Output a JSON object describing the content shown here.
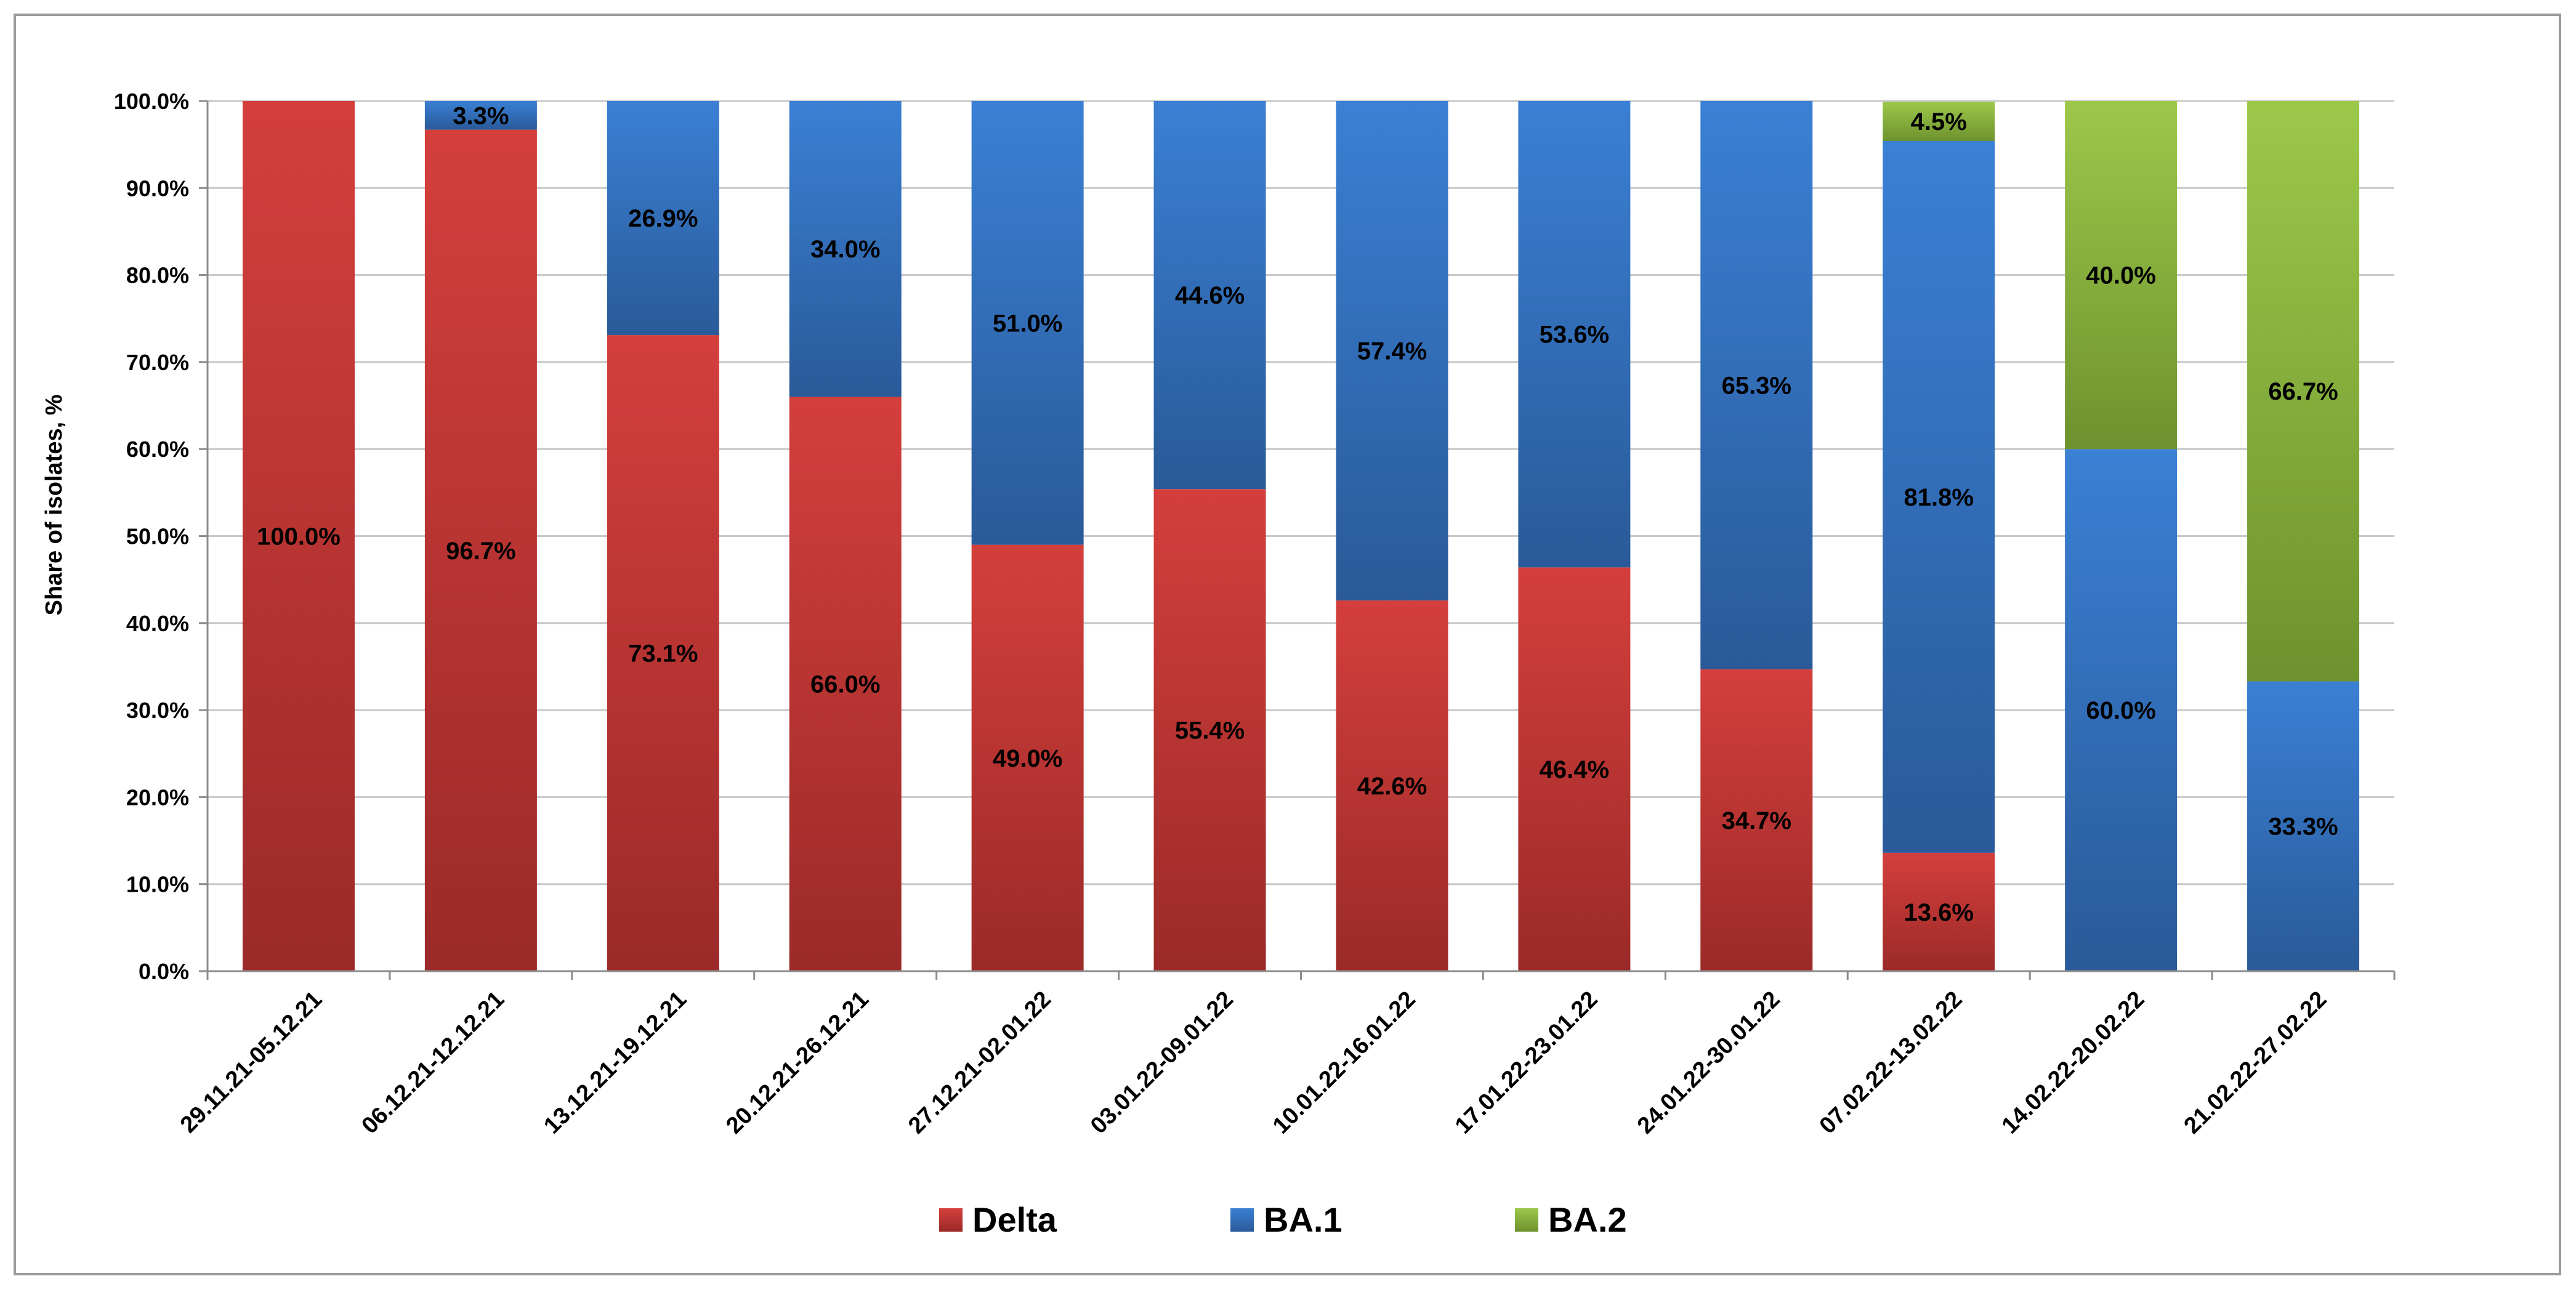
{
  "chart_data": {
    "type": "bar",
    "stacked": true,
    "title": "",
    "xlabel": "",
    "ylabel": "Share of isolates, %",
    "ylim": [
      0,
      100
    ],
    "y_ticks": [
      "0.0%",
      "10.0%",
      "20.0%",
      "30.0%",
      "40.0%",
      "50.0%",
      "60.0%",
      "70.0%",
      "80.0%",
      "90.0%",
      "100.0%"
    ],
    "grid": true,
    "legend_position": "bottom",
    "categories": [
      "29.11.21-05.12.21",
      "06.12.21-12.12.21",
      "13.12.21-19.12.21",
      "20.12.21-26.12.21",
      "27.12.21-02.01.22",
      "03.01.22-09.01.22",
      "10.01.22-16.01.22",
      "17.01.22-23.01.22",
      "24.01.22-30.01.22",
      "07.02.22-13.02.22",
      "14.02.22-20.02.22",
      "21.02.22-27.02.22"
    ],
    "series": [
      {
        "name": "Delta",
        "color": "#c9393a",
        "values": [
          100.0,
          96.7,
          73.1,
          66.0,
          49.0,
          55.4,
          42.6,
          46.4,
          34.7,
          13.6,
          0,
          0
        ],
        "labels": [
          "100.0%",
          "96.7%",
          "73.1%",
          "66.0%",
          "49.0%",
          "55.4%",
          "42.6%",
          "46.4%",
          "34.7%",
          "13.6%",
          "",
          ""
        ]
      },
      {
        "name": "BA.1",
        "color": "#3474c6",
        "values": [
          0,
          3.3,
          26.9,
          34.0,
          51.0,
          44.6,
          57.4,
          53.6,
          65.3,
          81.8,
          60.0,
          33.3
        ],
        "labels": [
          "",
          "3.3%",
          "26.9%",
          "34.0%",
          "51.0%",
          "44.6%",
          "57.4%",
          "53.6%",
          "65.3%",
          "81.8%",
          "60.0%",
          "33.3%"
        ]
      },
      {
        "name": "BA.2",
        "color": "#8fbb3c",
        "values": [
          0,
          0,
          0,
          0,
          0,
          0,
          0,
          0,
          0,
          4.5,
          40.0,
          66.7
        ],
        "labels": [
          "",
          "",
          "",
          "",
          "",
          "",
          "",
          "",
          "",
          "4.5%",
          "40.0%",
          "66.7%"
        ]
      }
    ]
  }
}
